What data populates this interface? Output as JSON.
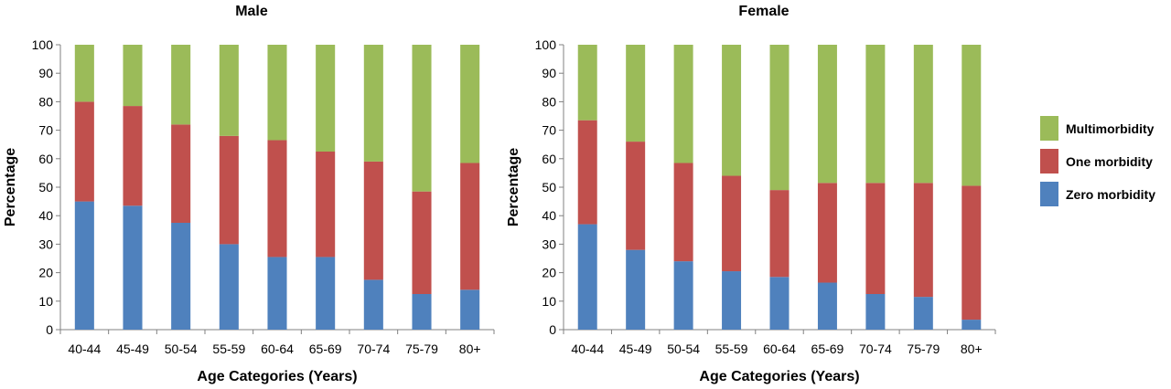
{
  "legend": [
    {
      "name": "Multimorbidity",
      "color": "#9BBB59"
    },
    {
      "name": "One morbidity",
      "color": "#C0504D"
    },
    {
      "name": "Zero morbidity",
      "color": "#4F81BD"
    }
  ],
  "chart_data": [
    {
      "type": "bar",
      "stacked": true,
      "title": "Male",
      "xlabel": "Age Categories (Years)",
      "ylabel": "Percentage",
      "ylim": [
        0,
        100
      ],
      "yticks": [
        0,
        10,
        20,
        30,
        40,
        50,
        60,
        70,
        80,
        90,
        100
      ],
      "categories": [
        "40-44",
        "45-49",
        "50-54",
        "55-59",
        "60-64",
        "65-69",
        "70-74",
        "75-79",
        "80+"
      ],
      "series": [
        {
          "name": "Zero morbidity",
          "values": [
            45,
            43.5,
            37.5,
            30,
            25.5,
            25.5,
            17.5,
            12.5,
            14
          ]
        },
        {
          "name": "One morbidity",
          "values": [
            35,
            35,
            34.5,
            38,
            41,
            37,
            41.5,
            36,
            44.5
          ]
        },
        {
          "name": "Multimorbidity",
          "values": [
            20,
            21.5,
            28,
            32,
            33.5,
            37.5,
            41,
            51.5,
            41.5
          ]
        }
      ]
    },
    {
      "type": "bar",
      "stacked": true,
      "title": "Female",
      "xlabel": "Age Categories (Years)",
      "ylabel": "Percentage",
      "ylim": [
        0,
        100
      ],
      "yticks": [
        0,
        10,
        20,
        30,
        40,
        50,
        60,
        70,
        80,
        90,
        100
      ],
      "categories": [
        "40-44",
        "45-49",
        "50-54",
        "55-59",
        "60-64",
        "65-69",
        "70-74",
        "75-79",
        "80+"
      ],
      "series": [
        {
          "name": "Zero morbidity",
          "values": [
            37,
            28,
            24,
            20.5,
            18.5,
            16.5,
            12.5,
            11.5,
            3.5
          ]
        },
        {
          "name": "One morbidity",
          "values": [
            36.5,
            38,
            34.5,
            33.5,
            30.5,
            35,
            39,
            40,
            47
          ]
        },
        {
          "name": "Multimorbidity",
          "values": [
            26.5,
            34,
            41.5,
            46,
            51,
            48.5,
            48.5,
            48.5,
            49.5
          ]
        }
      ]
    }
  ]
}
